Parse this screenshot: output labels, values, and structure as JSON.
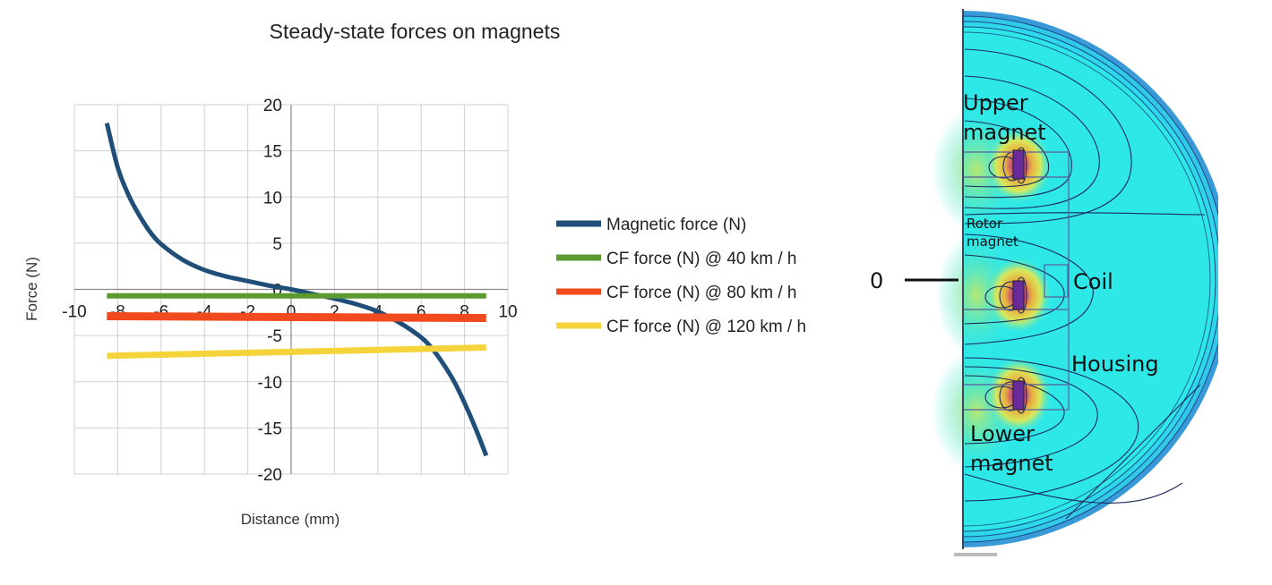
{
  "chart_data": {
    "type": "line",
    "title": "Steady-state forces on magnets",
    "xlabel": "Distance (mm)",
    "ylabel": "Force (N)",
    "xlim": [
      -10,
      10
    ],
    "ylim": [
      -20,
      20
    ],
    "xticks": [
      -10,
      -8,
      -6,
      -4,
      -2,
      0,
      2,
      4,
      6,
      8,
      10
    ],
    "yticks": [
      20,
      15,
      10,
      5,
      0,
      -5,
      -10,
      -15,
      -20
    ],
    "grid": true,
    "legend_position": "right",
    "series": [
      {
        "name": "Magnetic force  (N)",
        "color": "#1f4e79",
        "x": [
          -8.5,
          -8.0,
          -7.5,
          -7.0,
          -6.5,
          -6.0,
          -5.0,
          -4.0,
          -3.0,
          -2.0,
          -1.0,
          0.0,
          1.0,
          2.0,
          3.0,
          4.0,
          5.0,
          6.0,
          6.5,
          7.0,
          7.5,
          8.0,
          8.5,
          9.0
        ],
        "y": [
          18.0,
          13.2,
          10.2,
          8.0,
          6.2,
          4.9,
          3.2,
          2.1,
          1.4,
          0.9,
          0.4,
          0.0,
          -0.5,
          -1.0,
          -1.6,
          -2.4,
          -3.6,
          -5.2,
          -6.4,
          -8.0,
          -9.9,
          -12.3,
          -15.0,
          -18.0
        ]
      },
      {
        "name": "CF force (N) @ 40 km / h",
        "color": "#5b9a2e",
        "x": [
          -8.5,
          9.0
        ],
        "y": [
          -0.7,
          -0.7
        ]
      },
      {
        "name": "CF force (N) @ 80 km / h",
        "color": "#f04a1e",
        "x": [
          -8.5,
          9.0
        ],
        "y": [
          -2.9,
          -3.1
        ]
      },
      {
        "name": "CF force (N) @ 120 km / h",
        "color": "#f5d33a",
        "x": [
          -8.5,
          9.0
        ],
        "y": [
          -7.2,
          -6.3
        ]
      }
    ]
  },
  "diagram": {
    "zero_marker": "0",
    "labels": {
      "upper_magnet_1": "Upper",
      "upper_magnet_2": "magnet",
      "rotor_magnet_1": "Rotor",
      "rotor_magnet_2": "magnet",
      "coil": "Coil",
      "housing": "Housing",
      "lower_magnet_1": "Lower",
      "lower_magnet_2": "magnet"
    },
    "colors": {
      "field_background": "#2ee8e8",
      "field_high": "#c8e86a",
      "field_peak": "#e0a040",
      "field_core": "#8a3aa8",
      "housing_ring": "#3a9ad8"
    }
  }
}
